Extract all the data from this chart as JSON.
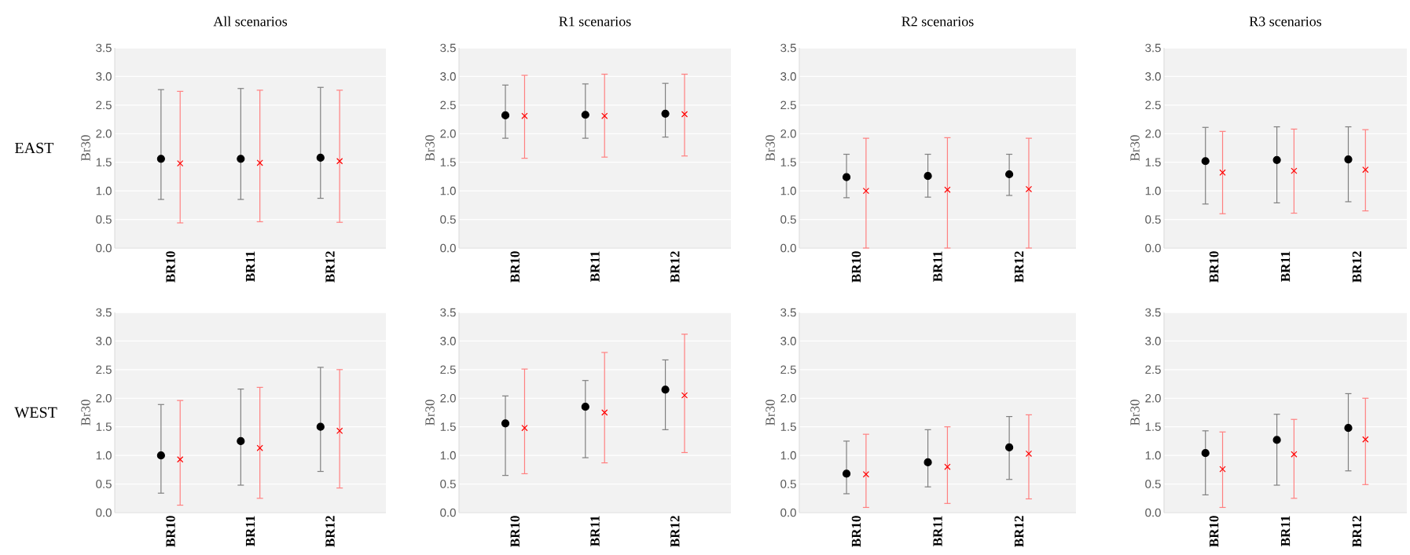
{
  "chart_data": [
    {
      "type": "scatter",
      "title": "All scenarios",
      "ylabel": "Br30",
      "annotations": [
        "EAST"
      ],
      "categories": [
        "BR10",
        "BR11",
        "BR12"
      ],
      "ylim": [
        0,
        3.5
      ],
      "yticks": [
        {
          "value": 0,
          "label": "0.0"
        },
        {
          "value": 0.5,
          "label": "0.5"
        },
        {
          "value": 1,
          "label": "1.0"
        },
        {
          "value": 1.5,
          "label": "1.5"
        },
        {
          "value": 2,
          "label": "2.0"
        },
        {
          "value": 2.5,
          "label": "2.5"
        },
        {
          "value": 3,
          "label": "3.0"
        },
        {
          "value": 3.5,
          "label": "3.5"
        }
      ],
      "grid": "y",
      "series": [
        {
          "color": "#000000",
          "marker": "circle",
          "values": [
            1.56,
            1.56,
            1.58
          ],
          "errors": [
            [
              0.85,
              2.77
            ],
            [
              0.85,
              2.79
            ],
            [
              0.87,
              2.81
            ]
          ]
        },
        {
          "color": "#ff0000",
          "marker": "cross",
          "values": [
            1.48,
            1.49,
            1.52
          ],
          "errors": [
            [
              0.44,
              2.74
            ],
            [
              0.46,
              2.76
            ],
            [
              0.45,
              2.76
            ]
          ]
        }
      ]
    },
    {
      "type": "scatter",
      "title": "R1 scenarios",
      "ylabel": "Br30",
      "categories": [
        "BR10",
        "BR11",
        "BR12"
      ],
      "ylim": [
        0,
        3.5
      ],
      "yticks": [
        {
          "value": 0,
          "label": "0.0"
        },
        {
          "value": 0.5,
          "label": "0.5"
        },
        {
          "value": 1,
          "label": "1.0"
        },
        {
          "value": 1.5,
          "label": "1.5"
        },
        {
          "value": 2,
          "label": "2.0"
        },
        {
          "value": 2.5,
          "label": "2.5"
        },
        {
          "value": 3,
          "label": "3.0"
        },
        {
          "value": 3.5,
          "label": "3.5"
        }
      ],
      "grid": "y",
      "series": [
        {
          "color": "#000000",
          "marker": "circle",
          "values": [
            2.32,
            2.33,
            2.35
          ],
          "errors": [
            [
              1.92,
              2.85
            ],
            [
              1.92,
              2.87
            ],
            [
              1.94,
              2.88
            ]
          ]
        },
        {
          "color": "#ff0000",
          "marker": "cross",
          "values": [
            2.31,
            2.31,
            2.34
          ],
          "errors": [
            [
              1.57,
              3.02
            ],
            [
              1.59,
              3.04
            ],
            [
              1.61,
              3.04
            ]
          ]
        }
      ]
    },
    {
      "type": "scatter",
      "title": "R2 scenarios",
      "ylabel": "Br30",
      "categories": [
        "BR10",
        "BR11",
        "BR12"
      ],
      "ylim": [
        0,
        3.5
      ],
      "yticks": [
        {
          "value": 0,
          "label": "0.0"
        },
        {
          "value": 0.5,
          "label": "0.5"
        },
        {
          "value": 1,
          "label": "1.0"
        },
        {
          "value": 1.5,
          "label": "1.5"
        },
        {
          "value": 2,
          "label": "2.0"
        },
        {
          "value": 2.5,
          "label": "2.5"
        },
        {
          "value": 3,
          "label": "3.0"
        },
        {
          "value": 3.5,
          "label": "3.5"
        }
      ],
      "grid": "y",
      "series": [
        {
          "color": "#000000",
          "marker": "circle",
          "values": [
            1.24,
            1.26,
            1.29
          ],
          "errors": [
            [
              0.88,
              1.64
            ],
            [
              0.89,
              1.64
            ],
            [
              0.92,
              1.64
            ]
          ]
        },
        {
          "color": "#ff0000",
          "marker": "cross",
          "values": [
            1.0,
            1.02,
            1.03
          ],
          "errors": [
            [
              0,
              1.92
            ],
            [
              0,
              1.93
            ],
            [
              0,
              1.92
            ]
          ]
        }
      ]
    },
    {
      "type": "scatter",
      "title": "R3 scenarios",
      "ylabel": "Br30",
      "categories": [
        "BR10",
        "BR11",
        "BR12"
      ],
      "ylim": [
        0,
        3.5
      ],
      "yticks": [
        {
          "value": 0,
          "label": "0.0"
        },
        {
          "value": 0.5,
          "label": "0.5"
        },
        {
          "value": 1,
          "label": "1.0"
        },
        {
          "value": 1.5,
          "label": "1.5"
        },
        {
          "value": 2,
          "label": "2.0"
        },
        {
          "value": 2.5,
          "label": "2.5"
        },
        {
          "value": 3,
          "label": "3.0"
        },
        {
          "value": 3.5,
          "label": "3.5"
        }
      ],
      "grid": "y",
      "series": [
        {
          "color": "#000000",
          "marker": "circle",
          "values": [
            1.52,
            1.54,
            1.55
          ],
          "errors": [
            [
              0.77,
              2.11
            ],
            [
              0.79,
              2.12
            ],
            [
              0.81,
              2.12
            ]
          ]
        },
        {
          "color": "#ff0000",
          "marker": "cross",
          "values": [
            1.32,
            1.35,
            1.37
          ],
          "errors": [
            [
              0.6,
              2.04
            ],
            [
              0.61,
              2.08
            ],
            [
              0.65,
              2.07
            ]
          ]
        }
      ]
    },
    {
      "type": "scatter",
      "ylabel": "Br30",
      "annotations": [
        "WEST"
      ],
      "categories": [
        "BR10",
        "BR11",
        "BR12"
      ],
      "ylim": [
        0,
        3.5
      ],
      "yticks": [
        {
          "value": 0,
          "label": "0.0"
        },
        {
          "value": 0.5,
          "label": "0.5"
        },
        {
          "value": 1,
          "label": "1.0"
        },
        {
          "value": 1.5,
          "label": "1.5"
        },
        {
          "value": 2,
          "label": "2.0"
        },
        {
          "value": 2.5,
          "label": "2.5"
        },
        {
          "value": 3,
          "label": "3.0"
        },
        {
          "value": 3.5,
          "label": "3.5"
        }
      ],
      "grid": "y",
      "series": [
        {
          "color": "#000000",
          "marker": "circle",
          "values": [
            1.0,
            1.25,
            1.5
          ],
          "errors": [
            [
              0.34,
              1.89
            ],
            [
              0.48,
              2.16
            ],
            [
              0.72,
              2.54
            ]
          ]
        },
        {
          "color": "#ff0000",
          "marker": "cross",
          "values": [
            0.93,
            1.13,
            1.43
          ],
          "errors": [
            [
              0.13,
              1.96
            ],
            [
              0.25,
              2.19
            ],
            [
              0.43,
              2.5
            ]
          ]
        }
      ]
    },
    {
      "type": "scatter",
      "ylabel": "Br30",
      "categories": [
        "BR10",
        "BR11",
        "BR12"
      ],
      "ylim": [
        0,
        3.5
      ],
      "yticks": [
        {
          "value": 0,
          "label": "0.0"
        },
        {
          "value": 0.5,
          "label": "0.5"
        },
        {
          "value": 1,
          "label": "1.0"
        },
        {
          "value": 1.5,
          "label": "1.5"
        },
        {
          "value": 2,
          "label": "2.0"
        },
        {
          "value": 2.5,
          "label": "2.5"
        },
        {
          "value": 3,
          "label": "3.0"
        },
        {
          "value": 3.5,
          "label": "3.5"
        }
      ],
      "grid": "y",
      "series": [
        {
          "color": "#000000",
          "marker": "circle",
          "values": [
            1.56,
            1.85,
            2.15
          ],
          "errors": [
            [
              0.65,
              2.04
            ],
            [
              0.96,
              2.31
            ],
            [
              1.45,
              2.67
            ]
          ]
        },
        {
          "color": "#ff0000",
          "marker": "cross",
          "values": [
            1.48,
            1.75,
            2.05
          ],
          "errors": [
            [
              0.68,
              2.51
            ],
            [
              0.87,
              2.8
            ],
            [
              1.05,
              3.12
            ]
          ]
        }
      ]
    },
    {
      "type": "scatter",
      "ylabel": "Br30",
      "categories": [
        "BR10",
        "BR11",
        "BR12"
      ],
      "ylim": [
        0,
        3.5
      ],
      "yticks": [
        {
          "value": 0,
          "label": "0.0"
        },
        {
          "value": 0.5,
          "label": "0.5"
        },
        {
          "value": 1,
          "label": "1.0"
        },
        {
          "value": 1.5,
          "label": "1.5"
        },
        {
          "value": 2,
          "label": "2.0"
        },
        {
          "value": 2.5,
          "label": "2.5"
        },
        {
          "value": 3,
          "label": "3.0"
        },
        {
          "value": 3.5,
          "label": "3.5"
        }
      ],
      "grid": "y",
      "series": [
        {
          "color": "#000000",
          "marker": "circle",
          "values": [
            0.68,
            0.88,
            1.14
          ],
          "errors": [
            [
              0.33,
              1.25
            ],
            [
              0.45,
              1.45
            ],
            [
              0.58,
              1.68
            ]
          ]
        },
        {
          "color": "#ff0000",
          "marker": "cross",
          "values": [
            0.67,
            0.8,
            1.03
          ],
          "errors": [
            [
              0.09,
              1.37
            ],
            [
              0.16,
              1.5
            ],
            [
              0.24,
              1.71
            ]
          ]
        }
      ]
    },
    {
      "type": "scatter",
      "ylabel": "Br30",
      "categories": [
        "BR10",
        "BR11",
        "BR12"
      ],
      "ylim": [
        0,
        3.5
      ],
      "yticks": [
        {
          "value": 0,
          "label": "0.0"
        },
        {
          "value": 0.5,
          "label": "0.5"
        },
        {
          "value": 1,
          "label": "1.0"
        },
        {
          "value": 1.5,
          "label": "1.5"
        },
        {
          "value": 2,
          "label": "2.0"
        },
        {
          "value": 2.5,
          "label": "2.5"
        },
        {
          "value": 3,
          "label": "3.0"
        },
        {
          "value": 3.5,
          "label": "3.5"
        }
      ],
      "grid": "y",
      "series": [
        {
          "color": "#000000",
          "marker": "circle",
          "values": [
            1.04,
            1.27,
            1.48
          ],
          "errors": [
            [
              0.31,
              1.43
            ],
            [
              0.48,
              1.72
            ],
            [
              0.73,
              2.08
            ]
          ]
        },
        {
          "color": "#ff0000",
          "marker": "cross",
          "values": [
            0.76,
            1.02,
            1.28
          ],
          "errors": [
            [
              0.09,
              1.41
            ],
            [
              0.25,
              1.63
            ],
            [
              0.49,
              2.0
            ]
          ]
        }
      ]
    }
  ]
}
